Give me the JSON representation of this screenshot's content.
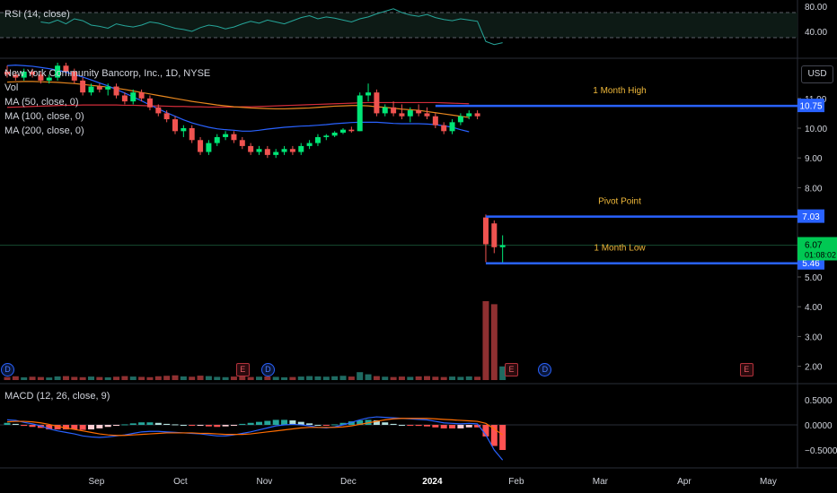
{
  "rsi": {
    "legend": "RSI (14, close)",
    "ticks": [
      {
        "v": 80,
        "label": "80.00"
      },
      {
        "v": 40,
        "label": "40.00"
      }
    ],
    "overbought": 70,
    "oversold": 30,
    "series": [
      55,
      53,
      58,
      52,
      60,
      57,
      50,
      48,
      45,
      52,
      49,
      47,
      50,
      55,
      53,
      49,
      45,
      43,
      40,
      46,
      50,
      48,
      44,
      47,
      52,
      56,
      53,
      58,
      55,
      52,
      57,
      62,
      65,
      60,
      63,
      61,
      58,
      55,
      60,
      63,
      68,
      72,
      76,
      70,
      66,
      64,
      67,
      62,
      59,
      57,
      60,
      58,
      56,
      24,
      19,
      22
    ]
  },
  "price": {
    "legend": {
      "title": "New York Community Bancorp, Inc., 1D, NYSE",
      "vol": "Vol",
      "ma50": "MA (50, close, 0)",
      "ma100": "MA (100, close, 0)",
      "ma200": "MA (200, close, 0)"
    },
    "currency_button": "USD",
    "ticks": [
      {
        "v": 11,
        "label": "11.00"
      },
      {
        "v": 10,
        "label": "10.00"
      },
      {
        "v": 9,
        "label": "9.00"
      },
      {
        "v": 8,
        "label": "8.00"
      },
      {
        "v": 5,
        "label": "5.00"
      },
      {
        "v": 4,
        "label": "4.00"
      },
      {
        "v": 3,
        "label": "3.00"
      },
      {
        "v": 2,
        "label": "2.00"
      }
    ],
    "levels": [
      {
        "name": "1 Month High",
        "value": 10.75,
        "label": "10.75"
      },
      {
        "name": "Pivot Point",
        "value": 7.03,
        "label": "7.03"
      },
      {
        "name": "1 Month Low",
        "value": 5.46,
        "label": "5.46"
      }
    ],
    "last_price": {
      "label": "6.07",
      "countdown": "01:08:02"
    },
    "candles": [
      [
        11.9,
        12.1,
        11.7,
        11.8
      ],
      [
        11.8,
        11.9,
        11.6,
        11.7
      ],
      [
        11.7,
        12.0,
        11.6,
        11.9
      ],
      [
        11.9,
        12.0,
        11.7,
        11.8
      ],
      [
        11.8,
        11.9,
        11.5,
        11.6
      ],
      [
        11.6,
        11.8,
        11.5,
        11.7
      ],
      [
        11.7,
        12.2,
        11.6,
        12.1
      ],
      [
        12.1,
        12.2,
        11.8,
        11.9
      ],
      [
        11.9,
        12.0,
        11.5,
        11.6
      ],
      [
        11.6,
        11.7,
        11.1,
        11.2
      ],
      [
        11.2,
        11.5,
        11.1,
        11.4
      ],
      [
        11.4,
        11.5,
        11.2,
        11.3
      ],
      [
        11.3,
        11.5,
        11.1,
        11.4
      ],
      [
        11.4,
        11.5,
        11.0,
        11.1
      ],
      [
        11.1,
        11.2,
        10.8,
        10.9
      ],
      [
        10.9,
        11.3,
        10.8,
        11.2
      ],
      [
        11.2,
        11.3,
        10.9,
        11.0
      ],
      [
        11.0,
        11.1,
        10.6,
        10.7
      ],
      [
        10.7,
        10.8,
        10.4,
        10.5
      ],
      [
        10.5,
        10.6,
        10.2,
        10.3
      ],
      [
        10.3,
        10.4,
        9.8,
        9.9
      ],
      [
        9.9,
        10.1,
        9.7,
        10.0
      ],
      [
        10.0,
        10.1,
        9.5,
        9.6
      ],
      [
        9.6,
        9.7,
        9.1,
        9.2
      ],
      [
        9.2,
        9.6,
        9.1,
        9.5
      ],
      [
        9.5,
        9.8,
        9.4,
        9.7
      ],
      [
        9.7,
        9.9,
        9.6,
        9.8
      ],
      [
        9.8,
        9.9,
        9.5,
        9.6
      ],
      [
        9.6,
        9.7,
        9.3,
        9.4
      ],
      [
        9.4,
        9.5,
        9.1,
        9.2
      ],
      [
        9.2,
        9.4,
        9.1,
        9.3
      ],
      [
        9.3,
        9.4,
        9.0,
        9.1
      ],
      [
        9.1,
        9.3,
        9.0,
        9.2
      ],
      [
        9.2,
        9.4,
        9.1,
        9.3
      ],
      [
        9.3,
        9.4,
        9.1,
        9.2
      ],
      [
        9.2,
        9.5,
        9.1,
        9.4
      ],
      [
        9.4,
        9.6,
        9.3,
        9.5
      ],
      [
        9.5,
        9.8,
        9.4,
        9.7
      ],
      [
        9.7,
        9.8,
        9.6,
        9.75
      ],
      [
        9.75,
        9.9,
        9.7,
        9.85
      ],
      [
        9.85,
        10.0,
        9.8,
        9.95
      ],
      [
        9.95,
        10.05,
        9.85,
        9.9
      ],
      [
        9.9,
        11.2,
        9.9,
        11.1
      ],
      [
        11.1,
        11.5,
        10.9,
        11.2
      ],
      [
        11.2,
        11.3,
        10.4,
        10.5
      ],
      [
        10.5,
        10.8,
        10.4,
        10.7
      ],
      [
        10.7,
        10.9,
        10.4,
        10.5
      ],
      [
        10.5,
        10.8,
        10.3,
        10.4
      ],
      [
        10.4,
        10.7,
        10.2,
        10.6
      ],
      [
        10.6,
        10.8,
        10.4,
        10.5
      ],
      [
        10.5,
        10.7,
        10.3,
        10.4
      ],
      [
        10.4,
        10.5,
        10.0,
        10.1
      ],
      [
        10.1,
        10.2,
        9.8,
        9.9
      ],
      [
        9.9,
        10.3,
        9.8,
        10.2
      ],
      [
        10.2,
        10.5,
        10.1,
        10.4
      ],
      [
        10.4,
        10.6,
        10.3,
        10.5
      ],
      [
        10.5,
        10.6,
        10.3,
        10.4
      ],
      [
        7.0,
        7.1,
        5.5,
        6.1
      ],
      [
        6.8,
        6.9,
        5.8,
        6.0
      ],
      [
        6.0,
        6.4,
        5.46,
        6.07
      ]
    ],
    "ma50": [
      12.1,
      12.12,
      12.1,
      12.08,
      12.04,
      12.0,
      11.95,
      11.88,
      11.8,
      11.72,
      11.62,
      11.52,
      11.42,
      11.3,
      11.18,
      11.05,
      10.92,
      10.78,
      10.65,
      10.52,
      10.4,
      10.28,
      10.18,
      10.1,
      10.03,
      9.98,
      9.95,
      9.93,
      9.9,
      9.9,
      9.93,
      9.97,
      10.0,
      10.03,
      10.05,
      10.07,
      10.08,
      10.1,
      10.12,
      10.15,
      10.17,
      10.19,
      10.2,
      10.2,
      10.2,
      10.18,
      10.16,
      10.15,
      10.15,
      10.15,
      10.14,
      10.12,
      10.08,
      10.03,
      9.95,
      9.88
    ],
    "ma100": [
      11.55,
      11.56,
      11.57,
      11.57,
      11.56,
      11.55,
      11.54,
      11.52,
      11.5,
      11.47,
      11.44,
      11.41,
      11.38,
      11.34,
      11.3,
      11.25,
      11.2,
      11.15,
      11.1,
      11.05,
      11.0,
      10.95,
      10.9,
      10.86,
      10.82,
      10.78,
      10.75,
      10.72,
      10.7,
      10.68,
      10.67,
      10.66,
      10.65,
      10.65,
      10.66,
      10.67,
      10.68,
      10.7,
      10.72,
      10.74,
      10.75,
      10.76,
      10.76,
      10.75,
      10.72,
      10.7,
      10.67,
      10.64,
      10.62,
      10.6,
      10.56,
      10.52,
      10.48,
      10.44,
      10.4,
      10.36
    ],
    "ma200": [
      10.7,
      10.71,
      10.72,
      10.73,
      10.74,
      10.75,
      10.76,
      10.77,
      10.77,
      10.78,
      10.78,
      10.78,
      10.78,
      10.78,
      10.77,
      10.77,
      10.76,
      10.75,
      10.75,
      10.74,
      10.73,
      10.73,
      10.72,
      10.72,
      10.71,
      10.71,
      10.71,
      10.71,
      10.72,
      10.72,
      10.73,
      10.74,
      10.75,
      10.76,
      10.77,
      10.78,
      10.79,
      10.8,
      10.81,
      10.82,
      10.83,
      10.84,
      10.85,
      10.86,
      10.86,
      10.86,
      10.86,
      10.86,
      10.86,
      10.86,
      10.86,
      10.86,
      10.85,
      10.84,
      10.83,
      10.82
    ],
    "volume": [
      2,
      2.5,
      1.8,
      2.2,
      2,
      1.7,
      2.4,
      2.6,
      2.1,
      1.9,
      2.3,
      2,
      1.8,
      2.2,
      2.6,
      2.3,
      2.1,
      1.9,
      2.5,
      2.8,
      3.1,
      2.4,
      2.2,
      2.9,
      2.6,
      2.1,
      1.9,
      2.3,
      2.5,
      2.0,
      2.2,
      2.4,
      2.1,
      1.8,
      2.0,
      2.3,
      2.6,
      2.4,
      2.2,
      2.5,
      2.8,
      2.3,
      5.2,
      3.8,
      2.6,
      2.2,
      2.0,
      2.3,
      2.1,
      2.4,
      2.6,
      2.2,
      2.0,
      2.3,
      2.1,
      2.4,
      2.2,
      52,
      50,
      9
    ]
  },
  "events": [
    {
      "type": "D",
      "label": "D"
    },
    {
      "type": "E",
      "label": "E"
    },
    {
      "type": "D",
      "label": "D"
    },
    {
      "type": "E",
      "label": "E"
    },
    {
      "type": "D",
      "label": "D"
    },
    {
      "type": "E",
      "label": "E"
    }
  ],
  "macd": {
    "legend": "MACD (12, 26, close, 9)",
    "ticks": [
      {
        "v": 0.5,
        "label": "0.5000"
      },
      {
        "v": 0,
        "label": "0.0000"
      },
      {
        "v": -0.5,
        "label": "−0.5000"
      }
    ],
    "macd": [
      0.1,
      0.09,
      0.05,
      0.02,
      -0.02,
      -0.08,
      -0.12,
      -0.15,
      -0.18,
      -0.22,
      -0.24,
      -0.25,
      -0.24,
      -0.22,
      -0.2,
      -0.17,
      -0.14,
      -0.13,
      -0.13,
      -0.14,
      -0.15,
      -0.16,
      -0.17,
      -0.18,
      -0.2,
      -0.22,
      -0.22,
      -0.2,
      -0.17,
      -0.14,
      -0.1,
      -0.06,
      -0.02,
      0.0,
      0.01,
      0.0,
      -0.02,
      -0.05,
      -0.06,
      -0.04,
      0.0,
      0.05,
      0.1,
      0.14,
      0.16,
      0.15,
      0.14,
      0.13,
      0.12,
      0.11,
      0.1,
      0.07,
      0.04,
      0.03,
      0.02,
      0.03,
      0.02,
      -0.2,
      -0.5,
      -0.7
    ],
    "signal": [
      0.06,
      0.07,
      0.07,
      0.06,
      0.04,
      0.01,
      -0.03,
      -0.06,
      -0.09,
      -0.12,
      -0.15,
      -0.18,
      -0.2,
      -0.21,
      -0.21,
      -0.2,
      -0.19,
      -0.18,
      -0.17,
      -0.16,
      -0.16,
      -0.16,
      -0.16,
      -0.17,
      -0.17,
      -0.18,
      -0.19,
      -0.19,
      -0.19,
      -0.18,
      -0.16,
      -0.14,
      -0.12,
      -0.1,
      -0.08,
      -0.06,
      -0.05,
      -0.05,
      -0.05,
      -0.05,
      -0.04,
      -0.02,
      0.01,
      0.04,
      0.07,
      0.1,
      0.12,
      0.13,
      0.13,
      0.13,
      0.13,
      0.12,
      0.11,
      0.1,
      0.09,
      0.08,
      0.07,
      0.03,
      -0.08,
      -0.2
    ]
  },
  "x_axis": [
    {
      "label": "Sep",
      "i": 4,
      "bold": false
    },
    {
      "label": "Oct",
      "i": 14,
      "bold": false
    },
    {
      "label": "Nov",
      "i": 24,
      "bold": false
    },
    {
      "label": "Dec",
      "i": 34,
      "bold": false
    },
    {
      "label": "2024",
      "i": 44,
      "bold": true
    },
    {
      "label": "Feb",
      "i": 54,
      "bold": false
    },
    {
      "label": "Mar",
      "i": 64,
      "bold": false
    },
    {
      "label": "Apr",
      "i": 74,
      "bold": false
    },
    {
      "label": "May",
      "i": 84,
      "bold": false
    }
  ],
  "colors": {
    "up": "#26a69a",
    "up_bright": "#00e676",
    "down": "#ef5350",
    "level": "#2962ff",
    "ma50": "#2962ff",
    "ma100": "#e8871e",
    "ma200": "#d12c3a",
    "rsi": "#26a69a"
  }
}
